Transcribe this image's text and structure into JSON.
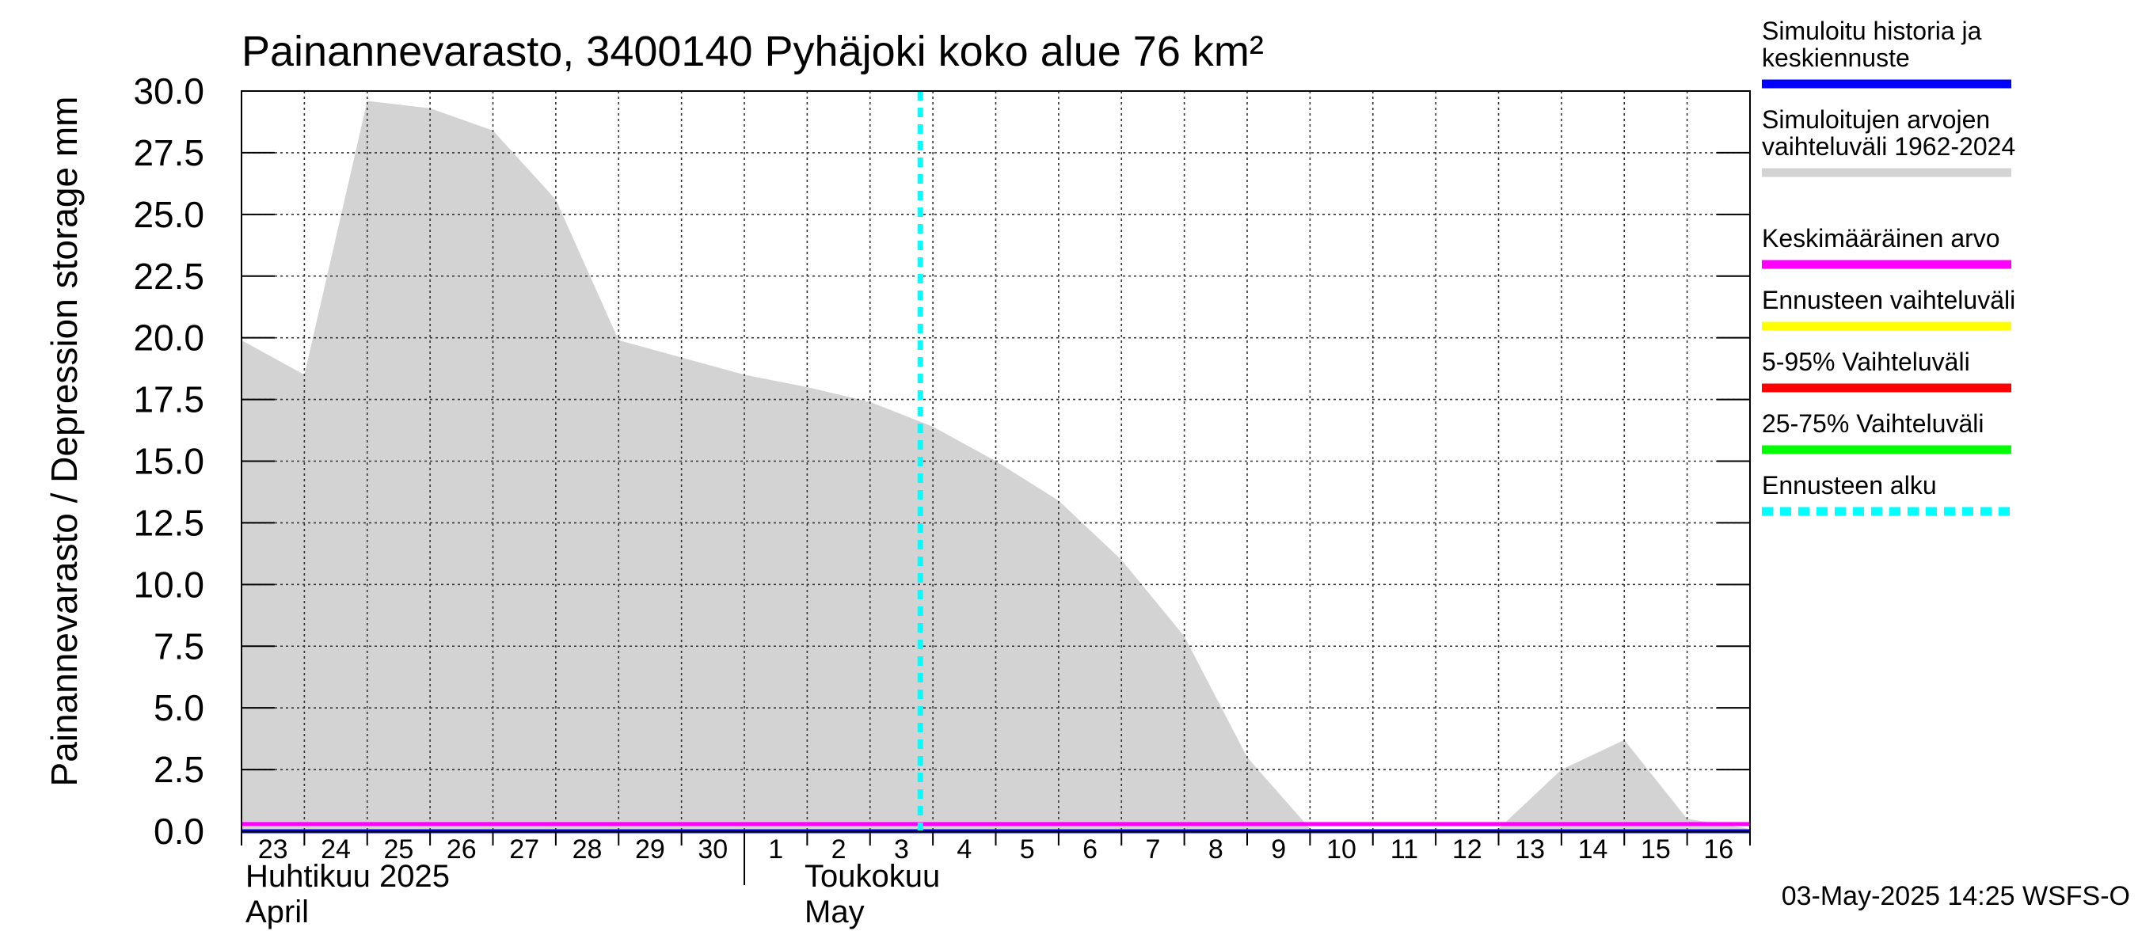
{
  "chart_data": {
    "type": "area",
    "title": "Painannevarasto, 3400140 Pyhäjoki koko alue 76 km²",
    "ylabel": "Painannevarasto / Depression storage    mm",
    "ylim": [
      0,
      30
    ],
    "yticks": [
      "0.0",
      "2.5",
      "5.0",
      "7.5",
      "10.0",
      "12.5",
      "15.0",
      "17.5",
      "20.0",
      "22.5",
      "25.0",
      "27.5",
      "30.0"
    ],
    "x_start_date": "2025-04-23",
    "day_labels": [
      "23",
      "24",
      "25",
      "26",
      "27",
      "28",
      "29",
      "30",
      "1",
      "2",
      "3",
      "4",
      "5",
      "6",
      "7",
      "8",
      "9",
      "10",
      "11",
      "12",
      "13",
      "14",
      "15",
      "16"
    ],
    "month_labels": [
      {
        "line1": "Huhtikuu  2025",
        "line2": "April"
      },
      {
        "line1": "Toukokuu",
        "line2": "May"
      }
    ],
    "grid": true,
    "legend_position": "right",
    "forecast_start": "2025-05-03 00:00",
    "series": [
      {
        "name": "Simuloitujen arvojen vaihteluväli 1962-2024",
        "type": "range",
        "color": "#d3d3d3",
        "x": [
          "2025-04-23",
          "2025-04-24",
          "2025-04-25",
          "2025-04-26",
          "2025-04-27",
          "2025-04-28",
          "2025-04-29",
          "2025-04-30",
          "2025-05-01",
          "2025-05-02",
          "2025-05-03",
          "2025-05-04",
          "2025-05-05",
          "2025-05-06",
          "2025-05-07",
          "2025-05-08",
          "2025-05-09",
          "2025-05-10",
          "2025-05-11",
          "2025-05-12",
          "2025-05-13",
          "2025-05-14",
          "2025-05-15",
          "2025-05-16",
          "2025-05-17"
        ],
        "upper": [
          19.9,
          18.5,
          29.6,
          29.3,
          28.4,
          25.6,
          19.9,
          19.2,
          18.5,
          18.0,
          17.4,
          16.4,
          15.0,
          13.4,
          11.0,
          7.9,
          3.0,
          0.1,
          0.1,
          0.1,
          0.1,
          2.5,
          3.7,
          0.5,
          0.1
        ],
        "lower": [
          0,
          0,
          0,
          0,
          0,
          0,
          0,
          0,
          0,
          0,
          0,
          0,
          0,
          0,
          0,
          0,
          0,
          0,
          0,
          0,
          0,
          0,
          0,
          0,
          0
        ]
      },
      {
        "name": "Simuloitu historia ja keskiennuste",
        "color": "#0000ff",
        "x": [
          "2025-04-23",
          "2025-05-17"
        ],
        "values": [
          0.0,
          0.0
        ]
      },
      {
        "name": "Keskimääräinen arvo",
        "color": "#ff00ff",
        "x": [
          "2025-04-23",
          "2025-05-17"
        ],
        "values": [
          0.1,
          0.1
        ]
      }
    ],
    "legend": [
      {
        "line1": "Simuloitu historia ja",
        "line2": "keskiennuste",
        "color": "#0000ff",
        "style": "solid"
      },
      {
        "line1": "Simuloitujen arvojen",
        "line2": "vaihteluväli 1962-2024",
        "color": "#d3d3d3",
        "style": "solid"
      },
      {
        "line1": "Keskimääräinen arvo",
        "line2": "",
        "color": "#ff00ff",
        "style": "solid"
      },
      {
        "line1": "Ennusteen vaihteluväli",
        "line2": "",
        "color": "#ffff00",
        "style": "solid"
      },
      {
        "line1": "5-95% Vaihteluväli",
        "line2": "",
        "color": "#ff0000",
        "style": "solid"
      },
      {
        "line1": "25-75% Vaihteluväli",
        "line2": "",
        "color": "#00ff00",
        "style": "solid"
      },
      {
        "line1": "Ennusteen alku",
        "line2": "",
        "color": "#00ffff",
        "style": "dashed"
      }
    ],
    "footer": "03-May-2025 14:25 WSFS-O"
  }
}
